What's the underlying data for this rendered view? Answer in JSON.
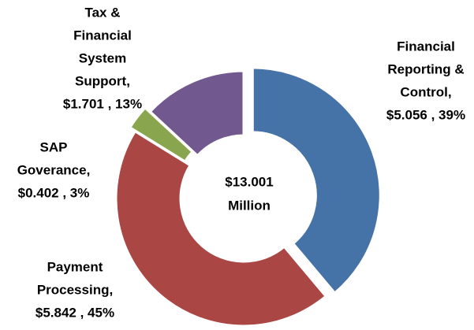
{
  "chart_data": {
    "type": "donut",
    "categories": [
      [
        "Financial",
        "Reporting &",
        "Control,"
      ],
      [
        "Payment",
        "Processing,"
      ],
      [
        "SAP",
        "Goverance,"
      ],
      [
        "Tax &",
        "Financial",
        "System",
        "Support,"
      ]
    ],
    "values": [
      5.056,
      5.842,
      0.402,
      1.701
    ],
    "value_labels": [
      "$5.056 , 39%",
      "$5.842 , 45%",
      "$0.402 , 3%",
      "$1.701 , 13%"
    ],
    "colors": [
      "#4572a7",
      "#aa4643",
      "#89a54e",
      "#71588f"
    ],
    "center_text": [
      "$13.001",
      "Million"
    ]
  }
}
